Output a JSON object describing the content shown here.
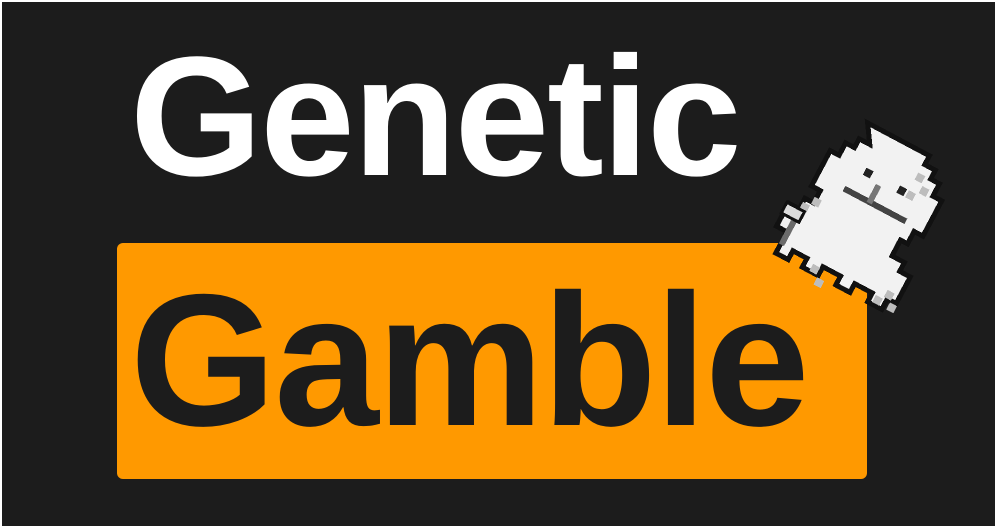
{
  "logo": {
    "line1": "Genetic",
    "line2": "Gamble",
    "colors": {
      "background": "#1c1c1c",
      "line1_text": "#ffffff",
      "box": "#ff9900",
      "line2_text": "#1c1c1c"
    }
  },
  "mascot": {
    "icon": "pixel-ghost-creature-icon"
  }
}
